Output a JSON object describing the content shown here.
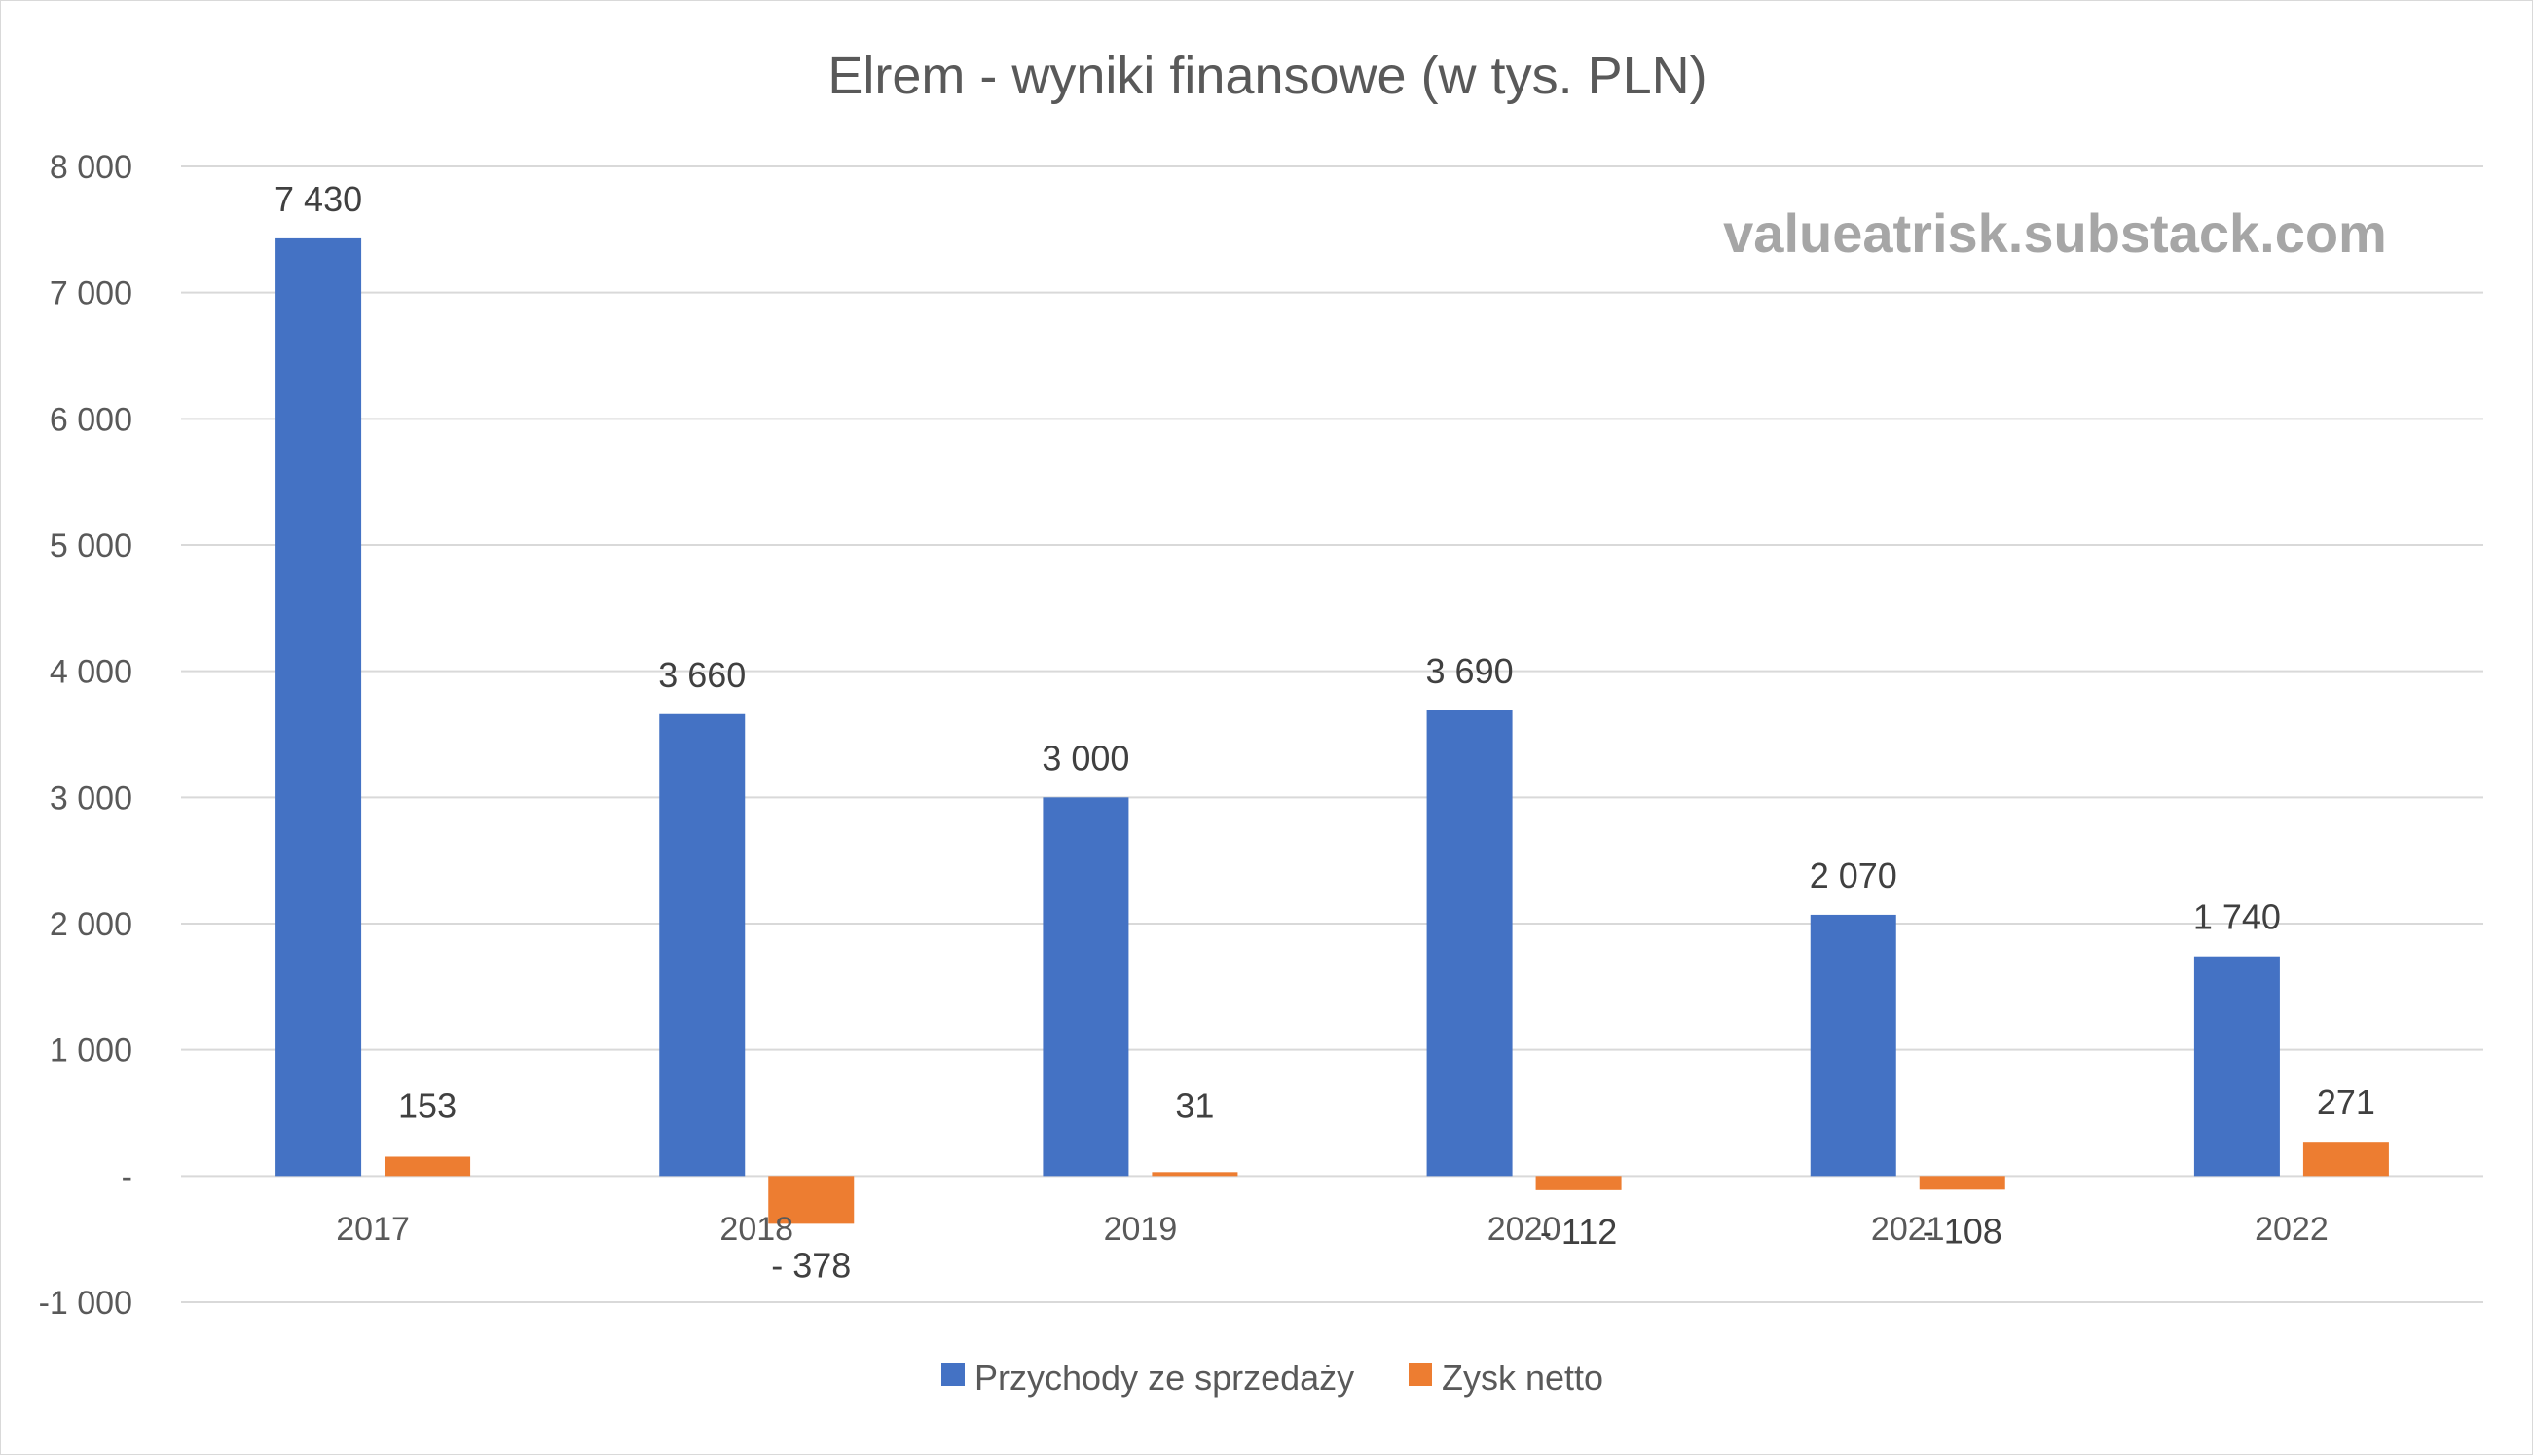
{
  "chart_data": {
    "type": "bar",
    "title": "Elrem - wyniki finansowe (w tys. PLN)",
    "watermark": "valueatrisk.substack.com",
    "categories": [
      "2017",
      "2018",
      "2019",
      "2020",
      "2021",
      "2022"
    ],
    "series": [
      {
        "name": "Przychody ze sprzedaży",
        "color": "#4472C4",
        "values": [
          7430,
          3660,
          3000,
          3690,
          2070,
          1740
        ],
        "labels": [
          "7 430",
          "3 660",
          "3 000",
          "3 690",
          "2 070",
          "1 740"
        ]
      },
      {
        "name": "Zysk netto",
        "color": "#ED7D31",
        "values": [
          153,
          -378,
          31,
          -112,
          -108,
          271
        ],
        "labels": [
          "153",
          "- 378",
          "31",
          "- 112",
          "- 108",
          "271"
        ]
      }
    ],
    "ylim": [
      -1000,
      8000
    ],
    "yticks": [
      -1000,
      0,
      1000,
      2000,
      3000,
      4000,
      5000,
      6000,
      7000,
      8000
    ],
    "ytick_labels": [
      "-1 000",
      "-",
      "1 000",
      "2 000",
      "3 000",
      "4 000",
      "5 000",
      "6 000",
      "7 000",
      "8 000"
    ],
    "grid": true,
    "legend_position": "bottom",
    "xlabel": "",
    "ylabel": ""
  }
}
